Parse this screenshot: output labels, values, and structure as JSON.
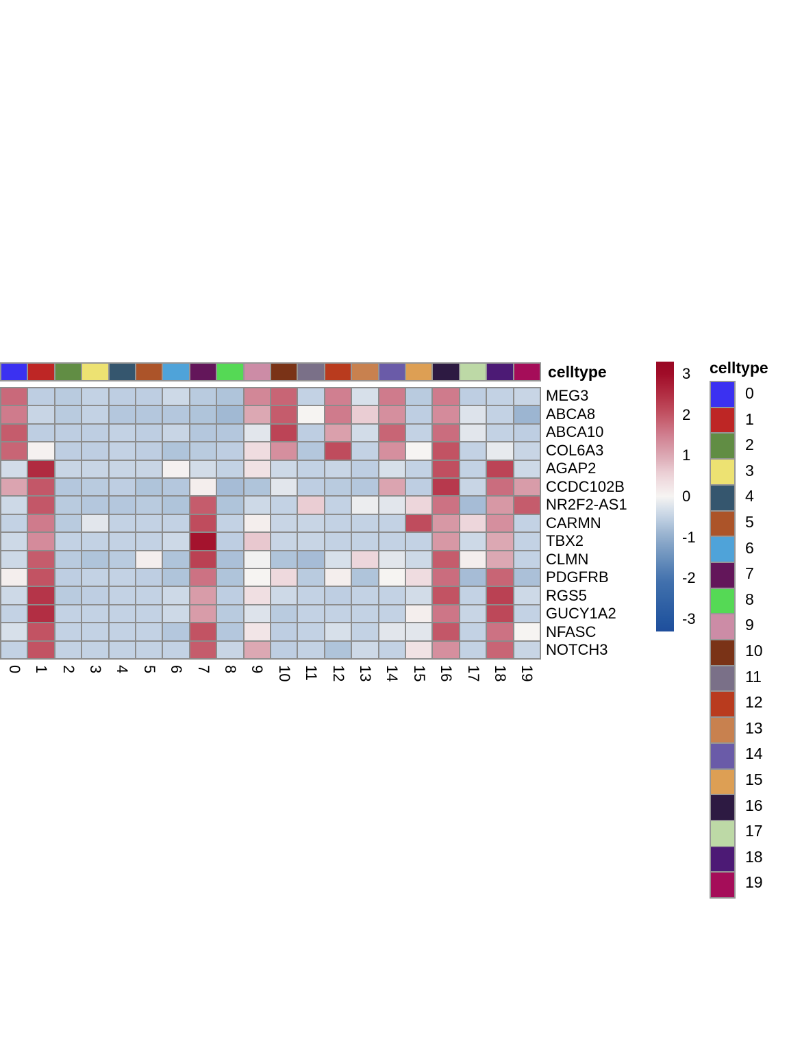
{
  "annotation": {
    "title": "celltype"
  },
  "legend": {
    "title": "celltype",
    "entries": [
      {
        "label": "0",
        "color": "#3B31F1"
      },
      {
        "label": "1",
        "color": "#BE2625"
      },
      {
        "label": "2",
        "color": "#618D44"
      },
      {
        "label": "3",
        "color": "#EDE272"
      },
      {
        "label": "4",
        "color": "#35566E"
      },
      {
        "label": "5",
        "color": "#AC5429"
      },
      {
        "label": "6",
        "color": "#4FA3D9"
      },
      {
        "label": "7",
        "color": "#63165A"
      },
      {
        "label": "8",
        "color": "#55D955"
      },
      {
        "label": "9",
        "color": "#CC8CA6"
      },
      {
        "label": "10",
        "color": "#7A3317"
      },
      {
        "label": "11",
        "color": "#7A7088"
      },
      {
        "label": "12",
        "color": "#B93B1E"
      },
      {
        "label": "13",
        "color": "#C8814F"
      },
      {
        "label": "14",
        "color": "#6A5BA8"
      },
      {
        "label": "15",
        "color": "#DD9F54"
      },
      {
        "label": "16",
        "color": "#2D1A42"
      },
      {
        "label": "17",
        "color": "#BDD9A6"
      },
      {
        "label": "18",
        "color": "#4C1A75"
      },
      {
        "label": "19",
        "color": "#A50D59"
      }
    ]
  },
  "chart_data": {
    "type": "heatmap",
    "rows": [
      "MEG3",
      "ABCA8",
      "ABCA10",
      "COL6A3",
      "AGAP2",
      "CCDC102B",
      "NR2F2-AS1",
      "CARMN",
      "TBX2",
      "CLMN",
      "PDGFRB",
      "RGS5",
      "GUCY1A2",
      "NFASC",
      "NOTCH3"
    ],
    "columns": [
      "0",
      "1",
      "2",
      "3",
      "4",
      "5",
      "6",
      "7",
      "8",
      "9",
      "10",
      "11",
      "12",
      "13",
      "14",
      "15",
      "16",
      "17",
      "18",
      "19"
    ],
    "values": [
      [
        1.75,
        -0.55,
        -0.6,
        -0.5,
        -0.55,
        -0.55,
        -0.4,
        -0.6,
        -0.7,
        1.4,
        1.8,
        -0.5,
        1.5,
        -0.3,
        1.55,
        -0.6,
        1.55,
        -0.55,
        -0.5,
        -0.45
      ],
      [
        1.55,
        -0.45,
        -0.6,
        -0.5,
        -0.65,
        -0.65,
        -0.65,
        -0.7,
        -0.85,
        1.0,
        1.9,
        0.0,
        1.55,
        0.6,
        1.3,
        -0.55,
        1.35,
        -0.25,
        -0.5,
        -0.9
      ],
      [
        1.9,
        -0.55,
        -0.55,
        -0.55,
        -0.5,
        -0.55,
        -0.45,
        -0.65,
        -0.65,
        -0.2,
        2.2,
        -0.55,
        1.1,
        -0.35,
        1.8,
        -0.5,
        1.7,
        -0.2,
        -0.5,
        -0.55
      ],
      [
        1.8,
        0.05,
        -0.55,
        -0.55,
        -0.5,
        -0.55,
        -0.7,
        -0.6,
        -0.55,
        0.4,
        1.3,
        -0.65,
        2.1,
        -0.5,
        1.3,
        0.0,
        2.0,
        -0.5,
        -0.15,
        -0.45
      ],
      [
        -0.35,
        2.55,
        -0.45,
        -0.45,
        -0.45,
        -0.45,
        0.05,
        -0.35,
        -0.5,
        0.3,
        -0.4,
        -0.5,
        -0.45,
        -0.55,
        -0.3,
        -0.5,
        2.05,
        -0.5,
        2.2,
        -0.4
      ],
      [
        1.05,
        1.95,
        -0.65,
        -0.6,
        -0.55,
        -0.7,
        -0.65,
        0.1,
        -0.8,
        -0.7,
        -0.2,
        -0.55,
        -0.6,
        -0.65,
        1.05,
        -0.55,
        2.35,
        -0.45,
        1.7,
        1.15
      ],
      [
        -0.4,
        1.95,
        -0.6,
        -0.65,
        -0.65,
        -0.6,
        -0.7,
        1.9,
        -0.7,
        -0.4,
        -0.5,
        0.6,
        -0.5,
        -0.1,
        -0.2,
        0.5,
        1.65,
        -0.8,
        1.2,
        1.9
      ],
      [
        -0.5,
        1.55,
        -0.6,
        -0.2,
        -0.5,
        -0.5,
        -0.5,
        2.1,
        -0.5,
        0.1,
        -0.45,
        -0.45,
        -0.5,
        -0.5,
        -0.5,
        2.1,
        1.2,
        0.5,
        1.3,
        -0.5
      ],
      [
        -0.4,
        1.35,
        -0.5,
        -0.5,
        -0.5,
        -0.5,
        -0.4,
        2.9,
        -0.55,
        0.65,
        -0.45,
        -0.45,
        -0.5,
        -0.5,
        -0.5,
        -0.5,
        1.2,
        -0.4,
        1.0,
        -0.5
      ],
      [
        -0.4,
        1.9,
        -0.6,
        -0.7,
        -0.6,
        0.1,
        -0.7,
        2.25,
        -0.75,
        -0.05,
        -0.7,
        -0.8,
        -0.3,
        0.5,
        -0.2,
        -0.4,
        1.9,
        0.1,
        1.0,
        -0.5
      ],
      [
        0.1,
        2.0,
        -0.55,
        -0.5,
        -0.5,
        -0.55,
        -0.7,
        1.65,
        -0.7,
        0.0,
        0.45,
        -0.6,
        0.1,
        -0.7,
        0.0,
        0.4,
        1.7,
        -0.8,
        1.8,
        -0.75
      ],
      [
        -0.4,
        2.4,
        -0.6,
        -0.55,
        -0.5,
        -0.5,
        -0.4,
        1.15,
        -0.55,
        0.35,
        -0.4,
        -0.5,
        -0.55,
        -0.5,
        -0.5,
        -0.35,
        2.0,
        -0.5,
        2.25,
        -0.4
      ],
      [
        -0.5,
        2.5,
        -0.5,
        -0.5,
        -0.5,
        -0.5,
        -0.4,
        1.15,
        -0.6,
        -0.25,
        -0.6,
        -0.5,
        -0.5,
        -0.5,
        -0.5,
        0.1,
        1.6,
        -0.45,
        2.15,
        -0.5
      ],
      [
        -0.3,
        2.0,
        -0.5,
        -0.5,
        -0.5,
        -0.5,
        -0.65,
        2.0,
        -0.65,
        0.25,
        -0.55,
        -0.5,
        -0.3,
        -0.5,
        -0.2,
        -0.2,
        1.95,
        -0.5,
        1.65,
        0.0
      ],
      [
        -0.5,
        2.0,
        -0.5,
        -0.5,
        -0.5,
        -0.5,
        -0.5,
        1.9,
        -0.45,
        1.0,
        -0.55,
        -0.5,
        -0.7,
        -0.4,
        -0.5,
        0.3,
        1.3,
        -0.5,
        1.8,
        -0.45
      ]
    ],
    "column_annotation": {
      "title": "celltype",
      "colors": [
        "#3B31F1",
        "#BE2625",
        "#618D44",
        "#EDE272",
        "#35566E",
        "#AC5429",
        "#4FA3D9",
        "#63165A",
        "#55D955",
        "#CC8CA6",
        "#7A3317",
        "#7A7088",
        "#B93B1E",
        "#C8814F",
        "#6A5BA8",
        "#DD9F54",
        "#2D1A42",
        "#BDD9A6",
        "#4C1A75",
        "#A50D59"
      ]
    },
    "scale": {
      "ticks": [
        3,
        2,
        1,
        0,
        -1,
        -2,
        -3
      ],
      "bar_min": -3.3,
      "bar_max": 3.3
    },
    "colormap_anchors": [
      [
        -3.3,
        "#1F4E9C"
      ],
      [
        -3.0,
        "#2457A0"
      ],
      [
        -2.0,
        "#4473AE"
      ],
      [
        -1.0,
        "#92AECC"
      ],
      [
        -0.5,
        "#C3D2E4"
      ],
      [
        0.0,
        "#F6F4F2"
      ],
      [
        0.5,
        "#EDD6DB"
      ],
      [
        1.0,
        "#DCA8B3"
      ],
      [
        1.5,
        "#D07F90"
      ],
      [
        2.0,
        "#C25363"
      ],
      [
        2.5,
        "#B22E43"
      ],
      [
        3.0,
        "#A00C28"
      ],
      [
        3.3,
        "#990723"
      ]
    ],
    "legend_position": "right",
    "grid": true
  }
}
